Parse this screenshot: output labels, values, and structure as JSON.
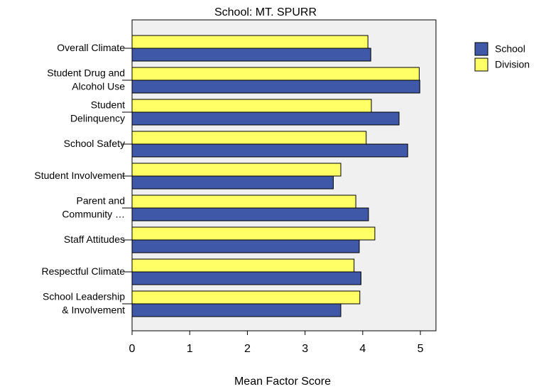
{
  "chart_data": {
    "type": "hbar",
    "title": "School: MT. SPURR",
    "xlabel": "Mean Factor Score",
    "categories": [
      "Overall Climate",
      "Student Drug and\nAlcohol Use",
      "Student\nDelinquency",
      "School Safety",
      "Student Involvement",
      "Parent and\nCommunity …",
      "Staff Attitudes",
      "Respectful Climate",
      "School Leadership\n& Involvement"
    ],
    "series": [
      {
        "name": "School",
        "color": "#3f58a8",
        "values": [
          4.14,
          4.99,
          4.63,
          4.78,
          3.49,
          4.1,
          3.94,
          3.97,
          3.62
        ]
      },
      {
        "name": "Division",
        "color": "#ffff66",
        "values": [
          4.09,
          4.98,
          4.15,
          4.06,
          3.62,
          3.88,
          4.21,
          3.85,
          3.95
        ]
      }
    ],
    "xlim": [
      0,
      5.27
    ],
    "xticks": [
      0,
      1,
      2,
      3,
      4,
      5
    ],
    "legend": "right"
  }
}
